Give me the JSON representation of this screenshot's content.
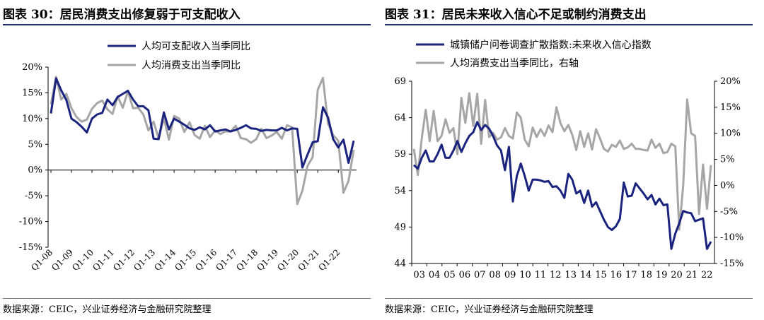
{
  "left": {
    "title": "图表 30：居民消费支出修复弱于可支配收入",
    "source": "数据来源：CEIC，兴业证券经济与金融研究院整理"
  },
  "right": {
    "title": "图表 31：居民未来收入信心不足或制约消费支出",
    "source": "数据来源：CEIC，兴业证券经济与金融研究院整理"
  },
  "chart_data": [
    {
      "type": "line",
      "title": "",
      "ylim": [
        -15,
        20
      ],
      "y_ticks": [
        "20%",
        "15%",
        "10%",
        "5%",
        "0%",
        "-5%",
        "-10%",
        "-15%"
      ],
      "x_ticks": [
        "Q1-08",
        "Q1-09",
        "Q1-10",
        "Q1-11",
        "Q1-12",
        "Q1-13",
        "Q1-14",
        "Q1-15",
        "Q1-16",
        "Q1-17",
        "Q1-18",
        "Q1-19",
        "Q1-20",
        "Q1-21",
        "Q1-22"
      ],
      "legend_position": "top",
      "series": [
        {
          "name": "人均可支配收入当季同比",
          "color": "#1a237e",
          "values": [
            11.0,
            17.8,
            15.5,
            13.6,
            10.0,
            9.3,
            8.4,
            7.3,
            10.0,
            10.8,
            11.1,
            13.7,
            12.6,
            14.2,
            14.8,
            15.4,
            13.7,
            12.4,
            12.4,
            11.6,
            6.1,
            6.0,
            11.2,
            7.9,
            10.0,
            9.4,
            8.8,
            8.1,
            7.8,
            8.3,
            7.9,
            8.7,
            7.5,
            7.7,
            7.9,
            7.5,
            7.8,
            8.2,
            8.7,
            8.1,
            8.0,
            7.6,
            7.8,
            7.7,
            7.7,
            8.2,
            7.7,
            8.1,
            8.0,
            0.5,
            3.0,
            5.4,
            5.6,
            12.2,
            10.2,
            6.0,
            4.4,
            5.9,
            1.4,
            5.7
          ]
        },
        {
          "name": "人均消费支出当季同比",
          "color": "#a6a6a6",
          "values": [
            12.8,
            18.1,
            13.7,
            14.8,
            12.0,
            10.3,
            9.4,
            9.8,
            11.9,
            13.0,
            13.5,
            11.8,
            10.9,
            14.3,
            12.1,
            15.3,
            12.0,
            12.1,
            10.8,
            7.7,
            9.4,
            6.1,
            10.1,
            5.9,
            10.5,
            10.0,
            7.4,
            9.3,
            6.8,
            6.1,
            8.6,
            6.4,
            7.7,
            7.0,
            7.5,
            7.5,
            8.6,
            6.2,
            6.0,
            5.3,
            6.0,
            8.0,
            6.2,
            6.7,
            7.4,
            6.1,
            8.7,
            8.3,
            -6.6,
            -4.0,
            0.8,
            2.5,
            15.6,
            17.9,
            9.0,
            6.8,
            5.7,
            -4.4,
            -2.1,
            3.9
          ]
        }
      ]
    },
    {
      "type": "line",
      "title": "",
      "ylim": [
        44,
        69
      ],
      "y_ticks": [
        "69",
        "64",
        "59",
        "54",
        "49",
        "44"
      ],
      "y2lim": [
        -15,
        20
      ],
      "y2_ticks": [
        "20%",
        "15%",
        "10%",
        "5%",
        "0%",
        "-5%",
        "-10%",
        "-15%"
      ],
      "x_ticks": [
        "03",
        "04",
        "05",
        "06",
        "07",
        "08",
        "09",
        "10",
        "11",
        "12",
        "13",
        "14",
        "15",
        "16",
        "17",
        "18",
        "19",
        "20",
        "21",
        "22"
      ],
      "legend_position": "top",
      "series": [
        {
          "name": "城镇储户问卷调查扩散指数:未来收入信心指数",
          "axis": "left",
          "color": "#1a237e",
          "values": [
            57.5,
            57.0,
            58.5,
            59.5,
            58.0,
            58.0,
            59.0,
            60.3,
            58.5,
            58.5,
            59.5,
            60.8,
            59.3,
            60.5,
            61.5,
            62.0,
            63.4,
            62.3,
            63.0,
            62.5,
            61.5,
            60.2,
            59.5,
            56.8,
            60.0,
            52.5,
            56.0,
            57.7,
            56.0,
            54.0,
            55.5,
            55.5,
            55.4,
            55.2,
            55.3,
            54.5,
            54.6,
            54.0,
            53.0,
            56.3,
            55.5,
            53.6,
            54.0,
            52.3,
            54.0,
            51.8,
            52.4,
            51.2,
            50.0,
            49.0,
            48.6,
            49.1,
            50.1,
            55.1,
            53.2,
            53.3,
            55.0,
            54.3,
            53.6,
            52.8,
            53.4,
            52.1,
            52.9,
            52.0,
            52.1,
            46.0,
            48.1,
            49.5,
            51.2,
            51.0,
            50.9,
            49.8,
            50.0,
            50.2,
            46.0,
            47.0
          ]
        },
        {
          "name": "人均消费支出当季同比，右轴",
          "axis": "right",
          "color": "#a6a6a6",
          "values": [
            7.0,
            2.0,
            9.0,
            14.5,
            8.5,
            14.3,
            8.5,
            9.5,
            12.7,
            10.1,
            11.0,
            6.0,
            16.8,
            12.0,
            17.7,
            11.4,
            17.6,
            8.0,
            16.4,
            9.3,
            10.1,
            8.8,
            9.2,
            11.0,
            9.5,
            9.0,
            14.0,
            13.0,
            8.8,
            7.5,
            11.1,
            9.3,
            10.8,
            9.5,
            11.5,
            10.2,
            15.0,
            12.0,
            10.4,
            11.6,
            9.7,
            6.8,
            10.4,
            7.4,
            10.0,
            6.9,
            10.8,
            9.0,
            7.0,
            6.5,
            7.8,
            7.4,
            8.6,
            7.0,
            7.3,
            8.0,
            7.0,
            7.0,
            6.8,
            6.7,
            8.8,
            7.2,
            8.0,
            6.2,
            6.4,
            8.0,
            7.5,
            -8.5,
            0.0,
            16.5,
            10.0,
            9.5,
            -5.5,
            4.0,
            -4.5,
            3.9
          ]
        }
      ]
    }
  ]
}
